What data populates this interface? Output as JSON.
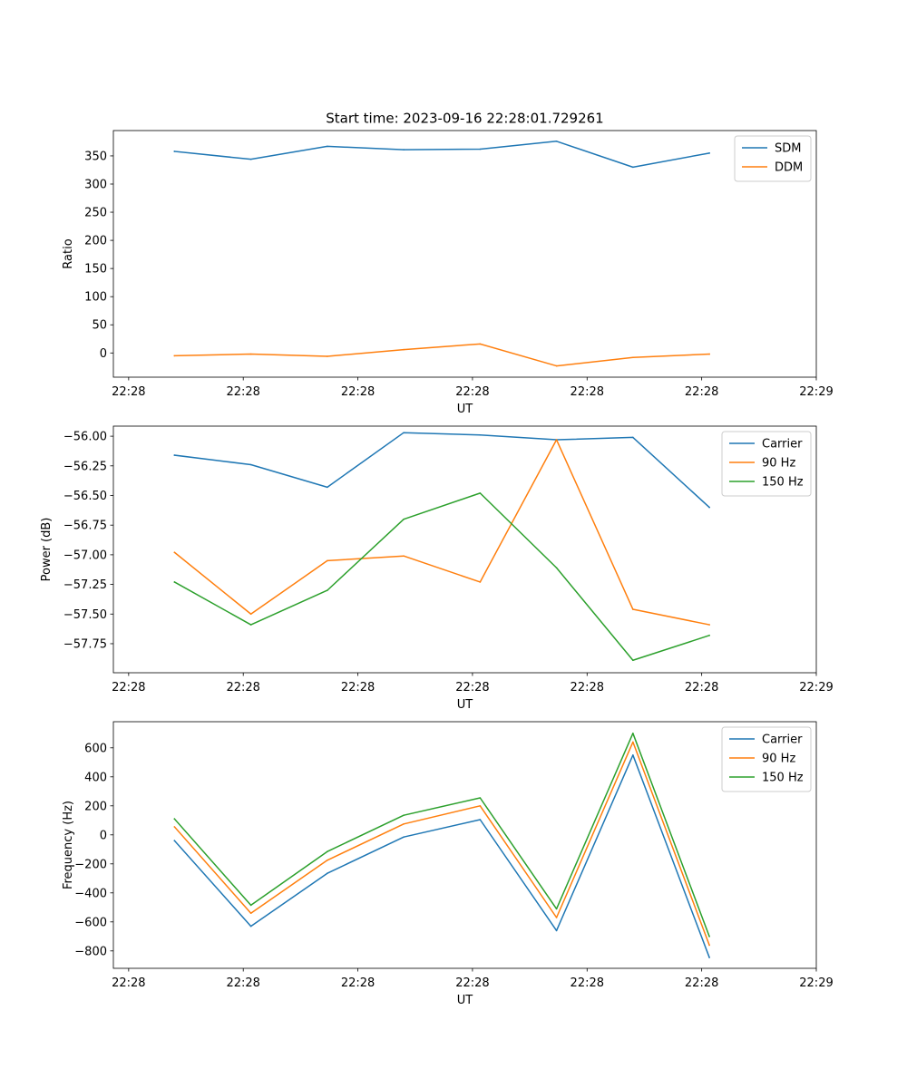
{
  "figure_title": "Start time: 2023-09-16 22:28:01.729261",
  "colors": {
    "blue": "#1f77b4",
    "orange": "#ff7f0e",
    "green": "#2ca02c"
  },
  "chart_data": [
    {
      "type": "line",
      "title": "Start time: 2023-09-16 22:28:01.729261",
      "xlabel": "UT",
      "ylabel": "Ratio",
      "x": [
        1,
        2,
        3,
        4,
        5,
        6,
        7,
        8
      ],
      "xlim": [
        0.2,
        9.4
      ],
      "x_ticks": [
        0.4,
        1.9,
        3.4,
        4.9,
        6.4,
        7.9,
        9.4
      ],
      "x_tick_labels": [
        "22:28",
        "22:28",
        "22:28",
        "22:28",
        "22:28",
        "22:28",
        "22:29"
      ],
      "ylim": [
        -43,
        395
      ],
      "y_ticks": [
        0,
        50,
        100,
        150,
        200,
        250,
        300,
        350
      ],
      "y_tick_labels": [
        "0",
        "50",
        "100",
        "150",
        "200",
        "250",
        "300",
        "350"
      ],
      "legend_position": "top-right",
      "series": [
        {
          "name": "SDM",
          "color": "#1f77b4",
          "values": [
            358,
            344,
            367,
            361,
            362,
            376,
            330,
            355
          ]
        },
        {
          "name": "DDM",
          "color": "#ff7f0e",
          "values": [
            -5,
            -2,
            -6,
            6,
            16,
            -23,
            -8,
            -2
          ]
        }
      ]
    },
    {
      "type": "line",
      "title": "",
      "xlabel": "UT",
      "ylabel": "Power (dB)",
      "x": [
        1,
        2,
        3,
        4,
        5,
        6,
        7,
        8
      ],
      "xlim": [
        0.2,
        9.4
      ],
      "x_ticks": [
        0.4,
        1.9,
        3.4,
        4.9,
        6.4,
        7.9,
        9.4
      ],
      "x_tick_labels": [
        "22:28",
        "22:28",
        "22:28",
        "22:28",
        "22:28",
        "22:28",
        "22:29"
      ],
      "ylim": [
        -57.995,
        -55.915
      ],
      "y_ticks": [
        -56.0,
        -56.25,
        -56.5,
        -56.75,
        -57.0,
        -57.25,
        -57.5,
        -57.75
      ],
      "y_tick_labels": [
        "−56.00",
        "−56.25",
        "−56.50",
        "−56.75",
        "−57.00",
        "−57.25",
        "−57.50",
        "−57.75"
      ],
      "legend_position": "top-right",
      "series": [
        {
          "name": "Carrier",
          "color": "#1f77b4",
          "values": [
            -56.16,
            -56.24,
            -56.43,
            -55.97,
            -55.99,
            -56.03,
            -56.01,
            -56.6
          ]
        },
        {
          "name": "90 Hz",
          "color": "#ff7f0e",
          "values": [
            -56.98,
            -57.5,
            -57.05,
            -57.01,
            -57.23,
            -56.03,
            -57.46,
            -57.59
          ]
        },
        {
          "name": "150 Hz",
          "color": "#2ca02c",
          "values": [
            -57.23,
            -57.59,
            -57.3,
            -56.7,
            -56.48,
            -57.11,
            -57.89,
            -57.68
          ]
        }
      ]
    },
    {
      "type": "line",
      "title": "",
      "xlabel": "UT",
      "ylabel": "Frequency (Hz)",
      "x": [
        1,
        2,
        3,
        4,
        5,
        6,
        7,
        8
      ],
      "xlim": [
        0.2,
        9.4
      ],
      "x_ticks": [
        0.4,
        1.9,
        3.4,
        4.9,
        6.4,
        7.9,
        9.4
      ],
      "x_tick_labels": [
        "22:28",
        "22:28",
        "22:28",
        "22:28",
        "22:28",
        "22:28",
        "22:29"
      ],
      "ylim": [
        -920,
        780
      ],
      "y_ticks": [
        -800,
        -600,
        -400,
        -200,
        0,
        200,
        400,
        600
      ],
      "y_tick_labels": [
        "−800",
        "−600",
        "−400",
        "−200",
        "0",
        "200",
        "400",
        "600"
      ],
      "legend_position": "top-right",
      "series": [
        {
          "name": "Carrier",
          "color": "#1f77b4",
          "values": [
            -40,
            -630,
            -265,
            -15,
            105,
            -660,
            550,
            -845
          ]
        },
        {
          "name": "90 Hz",
          "color": "#ff7f0e",
          "values": [
            55,
            -540,
            -175,
            75,
            200,
            -570,
            640,
            -760
          ]
        },
        {
          "name": "150 Hz",
          "color": "#2ca02c",
          "values": [
            110,
            -485,
            -115,
            135,
            255,
            -510,
            700,
            -700
          ]
        }
      ]
    }
  ]
}
